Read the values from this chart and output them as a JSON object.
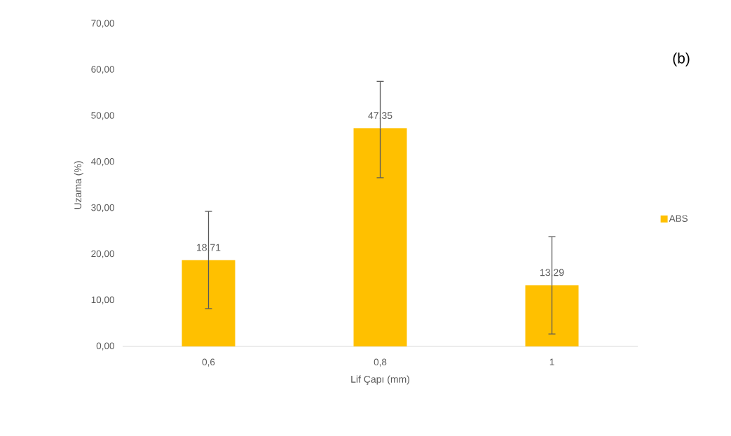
{
  "chart_data": {
    "type": "bar",
    "xlabel": "Lif Çapı (mm)",
    "ylabel": "Uzama (%)",
    "annotations": [
      "(b)"
    ],
    "categories": [
      "0,6",
      "0,8",
      "1"
    ],
    "series": [
      {
        "name": "ABS",
        "color": "#ffc000",
        "values": [
          18.71,
          47.35,
          13.29
        ],
        "value_labels": [
          "18,71",
          "47,35",
          "13,29"
        ],
        "errors": [
          [
            8.2,
            29.3
          ],
          [
            36.6,
            57.5
          ],
          [
            2.7,
            23.8
          ]
        ]
      }
    ],
    "ylim": [
      0,
      70
    ],
    "yticks": [
      {
        "value": 0,
        "label": "0,00"
      },
      {
        "value": 10,
        "label": "10,00"
      },
      {
        "value": 20,
        "label": "20,00"
      },
      {
        "value": 30,
        "label": "30,00"
      },
      {
        "value": 40,
        "label": "40,00"
      },
      {
        "value": 50,
        "label": "50,00"
      },
      {
        "value": 60,
        "label": "60,00"
      },
      {
        "value": 70,
        "label": "70,00"
      }
    ],
    "legend": "right"
  }
}
